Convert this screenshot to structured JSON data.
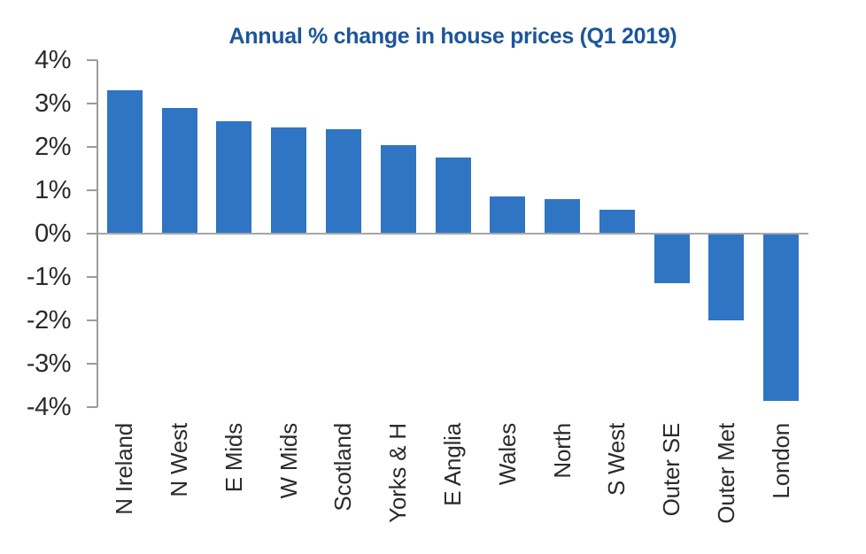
{
  "chart_data": {
    "type": "bar",
    "title": "Annual % change in house prices (Q1 2019)",
    "categories": [
      "N Ireland",
      "N West",
      "E Mids",
      "W Mids",
      "Scotland",
      "Yorks & H",
      "E Anglia",
      "Wales",
      "North",
      "S West",
      "Outer SE",
      "Outer Met",
      "London"
    ],
    "values": [
      3.3,
      2.9,
      2.6,
      2.45,
      2.4,
      2.05,
      1.75,
      0.85,
      0.8,
      0.55,
      -1.15,
      -2.0,
      -3.85
    ],
    "ytick_labels": [
      "4%",
      "3%",
      "2%",
      "1%",
      "0%",
      "-1%",
      "-2%",
      "-3%",
      "-4%"
    ],
    "ylim": [
      -4,
      4
    ],
    "ytick_step": 1,
    "xlabel": "",
    "ylabel": "",
    "grid": false,
    "legend": false,
    "colors": {
      "bar": "#2F75C3",
      "title": "#1C5699",
      "axis": "#9B9B9B",
      "zero_line": "#A6A6A6",
      "tick_label": "#2B2B2B"
    }
  }
}
